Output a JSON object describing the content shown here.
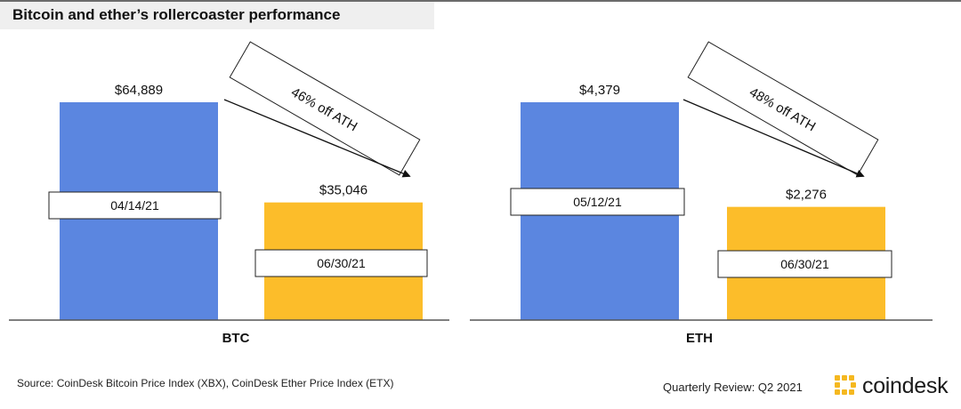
{
  "title": "Bitcoin and ether’s rollercoaster performance",
  "chart_data": [
    {
      "type": "bar",
      "category": "BTC",
      "ylim": [
        0,
        64889
      ],
      "colors": [
        "#5b86e0",
        "#fcbd2a"
      ],
      "bars": [
        {
          "value": 64889,
          "label": "$64,889",
          "date": "04/14/21"
        },
        {
          "value": 35046,
          "label": "$35,046",
          "date": "06/30/21"
        }
      ],
      "annotation": "46% off ATH"
    },
    {
      "type": "bar",
      "category": "ETH",
      "ylim": [
        0,
        4379
      ],
      "colors": [
        "#5b86e0",
        "#fcbd2a"
      ],
      "bars": [
        {
          "value": 4379,
          "label": "$4,379",
          "date": "05/12/21"
        },
        {
          "value": 2276,
          "label": "$2,276",
          "date": "06/30/21"
        }
      ],
      "annotation": "48% off ATH"
    }
  ],
  "footer": {
    "source": "Source: CoinDesk Bitcoin Price Index (XBX), CoinDesk Ether Price Index (ETX)",
    "review": "Quarterly Review: Q2 2021",
    "brand": "coindesk",
    "brand_color": "#f5b820"
  }
}
